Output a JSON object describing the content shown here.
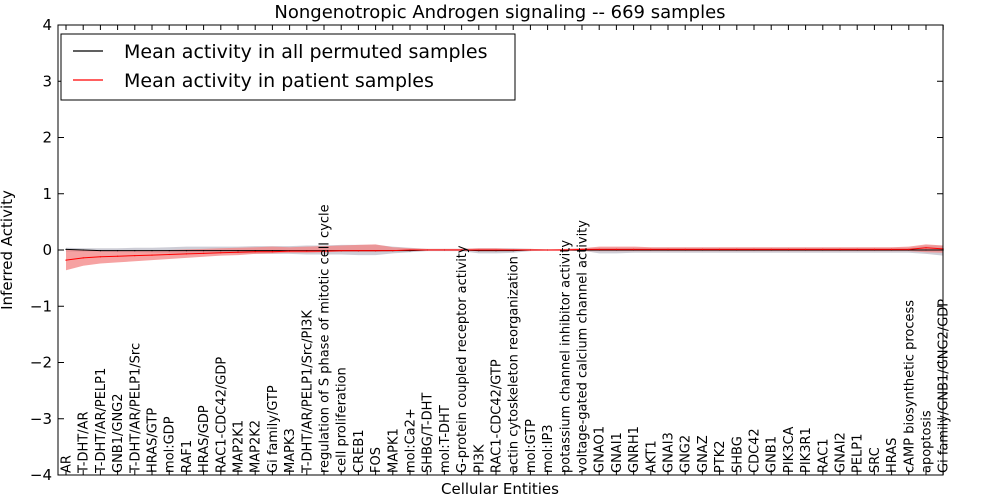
{
  "chart_data": {
    "type": "line",
    "title": "Nongenotropic Androgen signaling -- 669 samples",
    "xlabel": "Cellular Entities",
    "ylabel": "Inferred Activity",
    "ylim": [
      -4,
      4
    ],
    "yticks": [
      -4,
      -3,
      -2,
      -1,
      0,
      1,
      2,
      3,
      4
    ],
    "ytick_labels": [
      "−4",
      "−3",
      "−2",
      "−1",
      "0",
      "1",
      "2",
      "3",
      "4"
    ],
    "legend_position": "top-left",
    "categories": [
      "AR",
      "T-DHT/AR",
      "T-DHT/AR/PELP1",
      "GNB1/GNG2",
      "T-DHT/AR/PELP1/Src",
      "HRAS/GTP",
      "mol:GDP",
      "RAF1",
      "HRAS/GDP",
      "RAC1-CDC42/GDP",
      "MAP2K1",
      "MAP2K2",
      "Gi family/GTP",
      "MAPK3",
      "T-DHT/AR/PELP1/Src/PI3K",
      "regulation of S phase of mitotic cell cycle",
      "cell proliferation",
      "CREB1",
      "FOS",
      "MAPK1",
      "mol:Ca2+",
      "SHBG/T-DHT",
      "mol:T-DHT",
      "G-protein coupled receptor activity",
      "PI3K",
      "RAC1-CDC42/GTP",
      "actin cytoskeleton reorganization",
      "mol:GTP",
      "mol:IP3",
      "potassium channel inhibitor activity",
      "voltage-gated calcium channel activity",
      "GNAO1",
      "GNAI1",
      "GNRH1",
      "AKT1",
      "GNAI3",
      "GNG2",
      "GNAZ",
      "PTK2",
      "SHBG",
      "CDC42",
      "GNB1",
      "PIK3CA",
      "PIK3R1",
      "RAC1",
      "GNAI2",
      "PELP1",
      "SRC",
      "HRAS",
      "cAMP biosynthetic process",
      "apoptosis",
      "Gi family/GNB1/GNG2/GDP"
    ],
    "series": [
      {
        "name": "Mean activity in all permuted samples",
        "color": "#000000",
        "band_color": "#b8b8c4",
        "values": [
          0.01,
          0.0,
          -0.01,
          -0.01,
          -0.01,
          -0.01,
          -0.01,
          -0.01,
          -0.01,
          -0.01,
          -0.01,
          -0.01,
          -0.01,
          -0.01,
          -0.01,
          -0.01,
          -0.01,
          -0.01,
          -0.01,
          -0.01,
          -0.01,
          0.0,
          0.0,
          0.0,
          -0.01,
          -0.01,
          -0.01,
          0.0,
          0.0,
          0.0,
          0.0,
          0.0,
          0.0,
          0.0,
          0.0,
          0.0,
          0.0,
          0.0,
          0.0,
          0.0,
          0.0,
          0.0,
          0.0,
          0.0,
          0.0,
          0.0,
          0.0,
          0.0,
          0.0,
          0.0,
          0.0,
          0.0
        ],
        "lower": [
          -0.03,
          -0.03,
          -0.03,
          -0.04,
          -0.04,
          -0.05,
          -0.06,
          -0.06,
          -0.06,
          -0.06,
          -0.06,
          -0.07,
          -0.07,
          -0.07,
          -0.08,
          -0.08,
          -0.08,
          -0.09,
          -0.09,
          -0.06,
          -0.04,
          -0.02,
          -0.02,
          -0.02,
          -0.06,
          -0.06,
          -0.05,
          -0.02,
          -0.01,
          -0.01,
          -0.01,
          -0.06,
          -0.06,
          -0.05,
          -0.05,
          -0.05,
          -0.05,
          -0.05,
          -0.05,
          -0.05,
          -0.05,
          -0.05,
          -0.05,
          -0.05,
          -0.05,
          -0.05,
          -0.05,
          -0.05,
          -0.05,
          -0.05,
          -0.07,
          -0.1
        ],
        "upper": [
          0.04,
          0.03,
          0.03,
          0.03,
          0.04,
          0.04,
          0.05,
          0.06,
          0.06,
          0.06,
          0.06,
          0.07,
          0.07,
          0.07,
          0.08,
          0.08,
          0.09,
          0.09,
          0.09,
          0.06,
          0.04,
          0.02,
          0.02,
          0.02,
          0.03,
          0.03,
          0.03,
          0.02,
          0.01,
          0.01,
          0.01,
          0.04,
          0.04,
          0.04,
          0.04,
          0.04,
          0.04,
          0.04,
          0.04,
          0.04,
          0.04,
          0.04,
          0.04,
          0.04,
          0.04,
          0.04,
          0.04,
          0.04,
          0.04,
          0.04,
          0.08,
          0.08
        ]
      },
      {
        "name": "Mean activity in patient samples",
        "color": "#ff0000",
        "band_color": "#f38383",
        "values": [
          -0.18,
          -0.14,
          -0.12,
          -0.11,
          -0.1,
          -0.09,
          -0.08,
          -0.07,
          -0.06,
          -0.05,
          -0.04,
          -0.03,
          -0.03,
          -0.02,
          -0.02,
          -0.02,
          -0.01,
          -0.01,
          -0.01,
          -0.01,
          0.0,
          0.0,
          0.0,
          0.0,
          0.0,
          0.0,
          0.0,
          0.0,
          0.0,
          0.0,
          0.01,
          0.01,
          0.01,
          0.01,
          0.01,
          0.01,
          0.01,
          0.01,
          0.01,
          0.01,
          0.01,
          0.01,
          0.01,
          0.01,
          0.01,
          0.01,
          0.01,
          0.01,
          0.01,
          0.01,
          0.04,
          0.02
        ],
        "lower": [
          -0.36,
          -0.28,
          -0.24,
          -0.22,
          -0.2,
          -0.18,
          -0.16,
          -0.14,
          -0.12,
          -0.1,
          -0.09,
          -0.07,
          -0.06,
          -0.05,
          -0.05,
          -0.04,
          -0.03,
          -0.03,
          -0.03,
          -0.02,
          -0.01,
          -0.01,
          -0.01,
          -0.01,
          -0.02,
          -0.02,
          -0.01,
          -0.01,
          -0.01,
          -0.01,
          -0.02,
          -0.02,
          -0.02,
          -0.02,
          -0.02,
          -0.02,
          -0.02,
          -0.02,
          -0.02,
          -0.02,
          -0.02,
          -0.02,
          -0.02,
          -0.02,
          -0.02,
          -0.02,
          -0.02,
          -0.02,
          -0.02,
          -0.02,
          -0.04,
          -0.05
        ],
        "upper": [
          0.0,
          0.0,
          -0.01,
          -0.01,
          -0.01,
          -0.01,
          0.0,
          0.01,
          0.02,
          0.03,
          0.04,
          0.05,
          0.06,
          0.05,
          0.06,
          0.07,
          0.08,
          0.09,
          0.1,
          0.05,
          0.03,
          0.02,
          0.02,
          0.02,
          0.03,
          0.03,
          0.02,
          0.02,
          0.01,
          0.02,
          0.03,
          0.06,
          0.06,
          0.06,
          0.05,
          0.05,
          0.05,
          0.05,
          0.05,
          0.05,
          0.05,
          0.05,
          0.05,
          0.05,
          0.05,
          0.05,
          0.05,
          0.05,
          0.05,
          0.06,
          0.1,
          0.08
        ]
      }
    ]
  }
}
